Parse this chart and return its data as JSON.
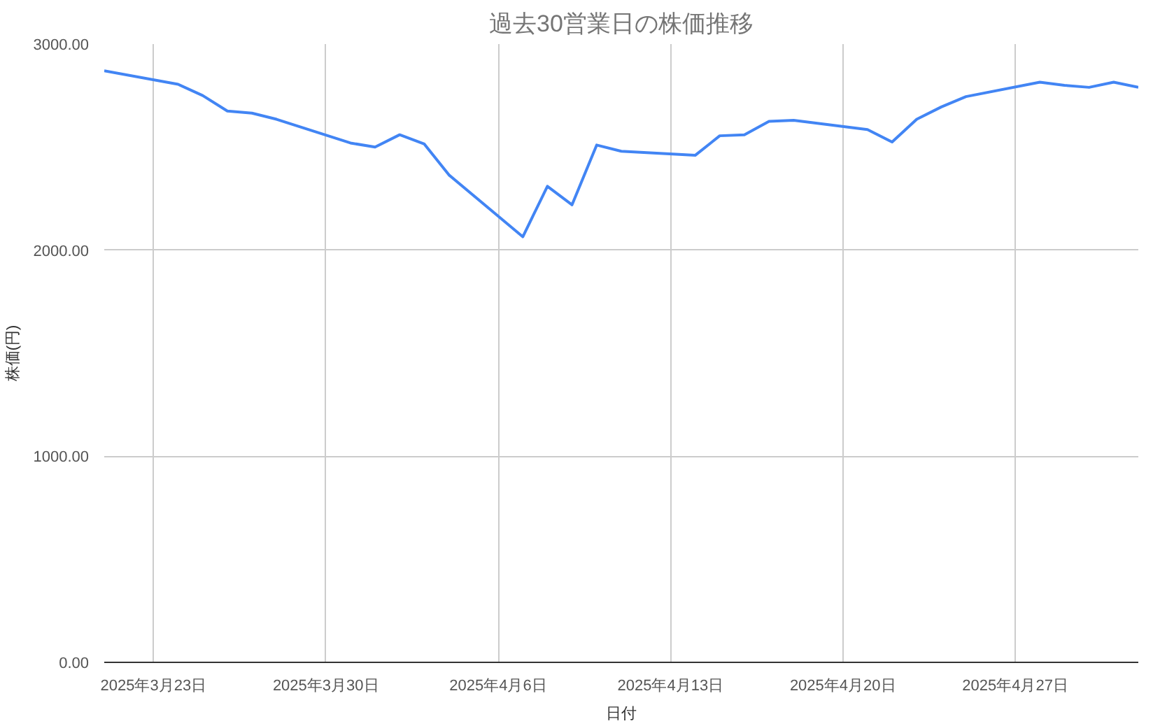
{
  "chart_data": {
    "type": "line",
    "title": "過去30営業日の株価推移",
    "xlabel": "日付",
    "ylabel": "株価(円)",
    "x": [
      "2025-03-21",
      "2025-03-24",
      "2025-03-25",
      "2025-03-26",
      "2025-03-27",
      "2025-03-28",
      "2025-03-31",
      "2025-04-01",
      "2025-04-02",
      "2025-04-03",
      "2025-04-04",
      "2025-04-07",
      "2025-04-08",
      "2025-04-09",
      "2025-04-10",
      "2025-04-11",
      "2025-04-14",
      "2025-04-15",
      "2025-04-16",
      "2025-04-17",
      "2025-04-18",
      "2025-04-21",
      "2025-04-22",
      "2025-04-23",
      "2025-04-24",
      "2025-04-25",
      "2025-04-28",
      "2025-04-29",
      "2025-04-30",
      "2025-05-01",
      "2025-05-02"
    ],
    "series": [
      {
        "color": "#4285f4",
        "values": [
          2870,
          2805,
          2750,
          2675,
          2665,
          2635,
          2520,
          2500,
          2560,
          2515,
          2365,
          2065,
          2310,
          2220,
          2510,
          2480,
          2460,
          2555,
          2560,
          2625,
          2630,
          2585,
          2525,
          2635,
          2695,
          2745,
          2815,
          2800,
          2790,
          2815,
          2790
        ]
      }
    ],
    "xlim": [
      "2025-03-21",
      "2025-05-02"
    ],
    "xticks": [
      {
        "value": "2025-03-23",
        "label": "2025年3月23日"
      },
      {
        "value": "2025-03-30",
        "label": "2025年3月30日"
      },
      {
        "value": "2025-04-06",
        "label": "2025年4月6日"
      },
      {
        "value": "2025-04-13",
        "label": "2025年4月13日"
      },
      {
        "value": "2025-04-20",
        "label": "2025年4月20日"
      },
      {
        "value": "2025-04-27",
        "label": "2025年4月27日"
      }
    ],
    "ylim": [
      0,
      3000
    ],
    "yticks": [
      {
        "value": 0,
        "label": "0.00"
      },
      {
        "value": 1000,
        "label": "1000.00"
      },
      {
        "value": 2000,
        "label": "2000.00"
      },
      {
        "value": 3000,
        "label": "3000.00"
      }
    ],
    "grid": true,
    "marker": "none",
    "line_style": "solid"
  }
}
